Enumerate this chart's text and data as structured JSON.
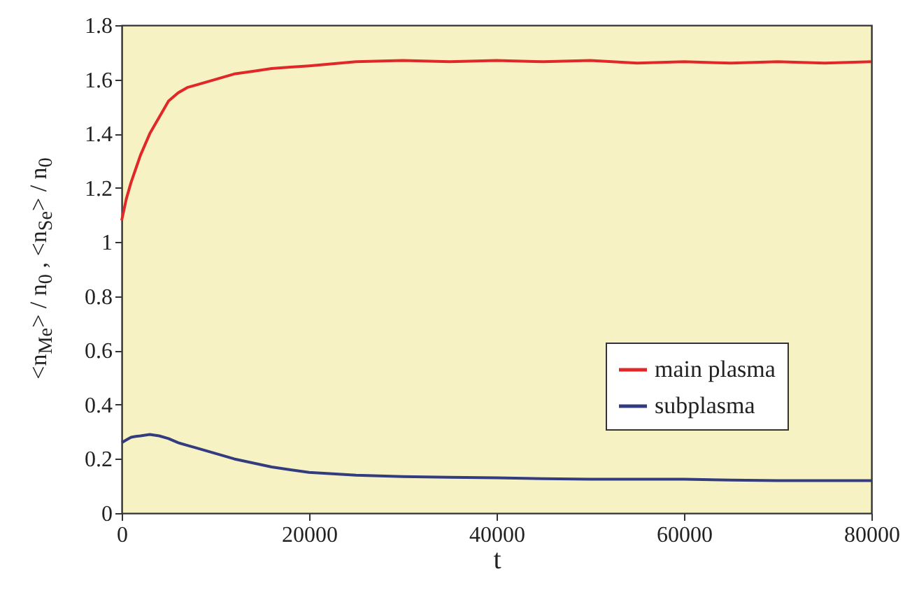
{
  "chart_data": {
    "type": "line",
    "xlabel": "t",
    "ylabel": "<n$_{Me}$> / n$_{0}$ ,  <n$_{Se}$> / n$_{0}$",
    "xlim": [
      0,
      80000
    ],
    "xticks": [
      0,
      20000,
      40000,
      60000,
      80000
    ],
    "ylim": [
      0,
      1.8
    ],
    "yticks": [
      0,
      0.2,
      0.4,
      0.6,
      0.8,
      1,
      1.2,
      1.4,
      1.6,
      1.8
    ],
    "grid": false,
    "legend": "bottom right",
    "x": [
      0,
      500,
      1000,
      1500,
      2000,
      3000,
      4000,
      5000,
      6000,
      7000,
      8000,
      10000,
      12000,
      14000,
      16000,
      18000,
      20000,
      25000,
      30000,
      35000,
      40000,
      45000,
      50000,
      55000,
      60000,
      65000,
      70000,
      75000,
      80000
    ],
    "series": [
      {
        "name": "main plasma",
        "color": "#e02828",
        "values": [
          1.08,
          1.16,
          1.22,
          1.27,
          1.32,
          1.4,
          1.46,
          1.52,
          1.55,
          1.57,
          1.58,
          1.6,
          1.62,
          1.63,
          1.64,
          1.645,
          1.65,
          1.665,
          1.67,
          1.665,
          1.67,
          1.665,
          1.67,
          1.66,
          1.665,
          1.66,
          1.665,
          1.66,
          1.665
        ]
      },
      {
        "name": "subplasma",
        "color": "#343c80",
        "values": [
          0.26,
          0.27,
          0.28,
          0.283,
          0.285,
          0.29,
          0.285,
          0.275,
          0.26,
          0.25,
          0.24,
          0.22,
          0.2,
          0.185,
          0.17,
          0.16,
          0.15,
          0.14,
          0.135,
          0.132,
          0.13,
          0.127,
          0.125,
          0.125,
          0.125,
          0.122,
          0.12,
          0.12,
          0.12
        ]
      }
    ]
  }
}
